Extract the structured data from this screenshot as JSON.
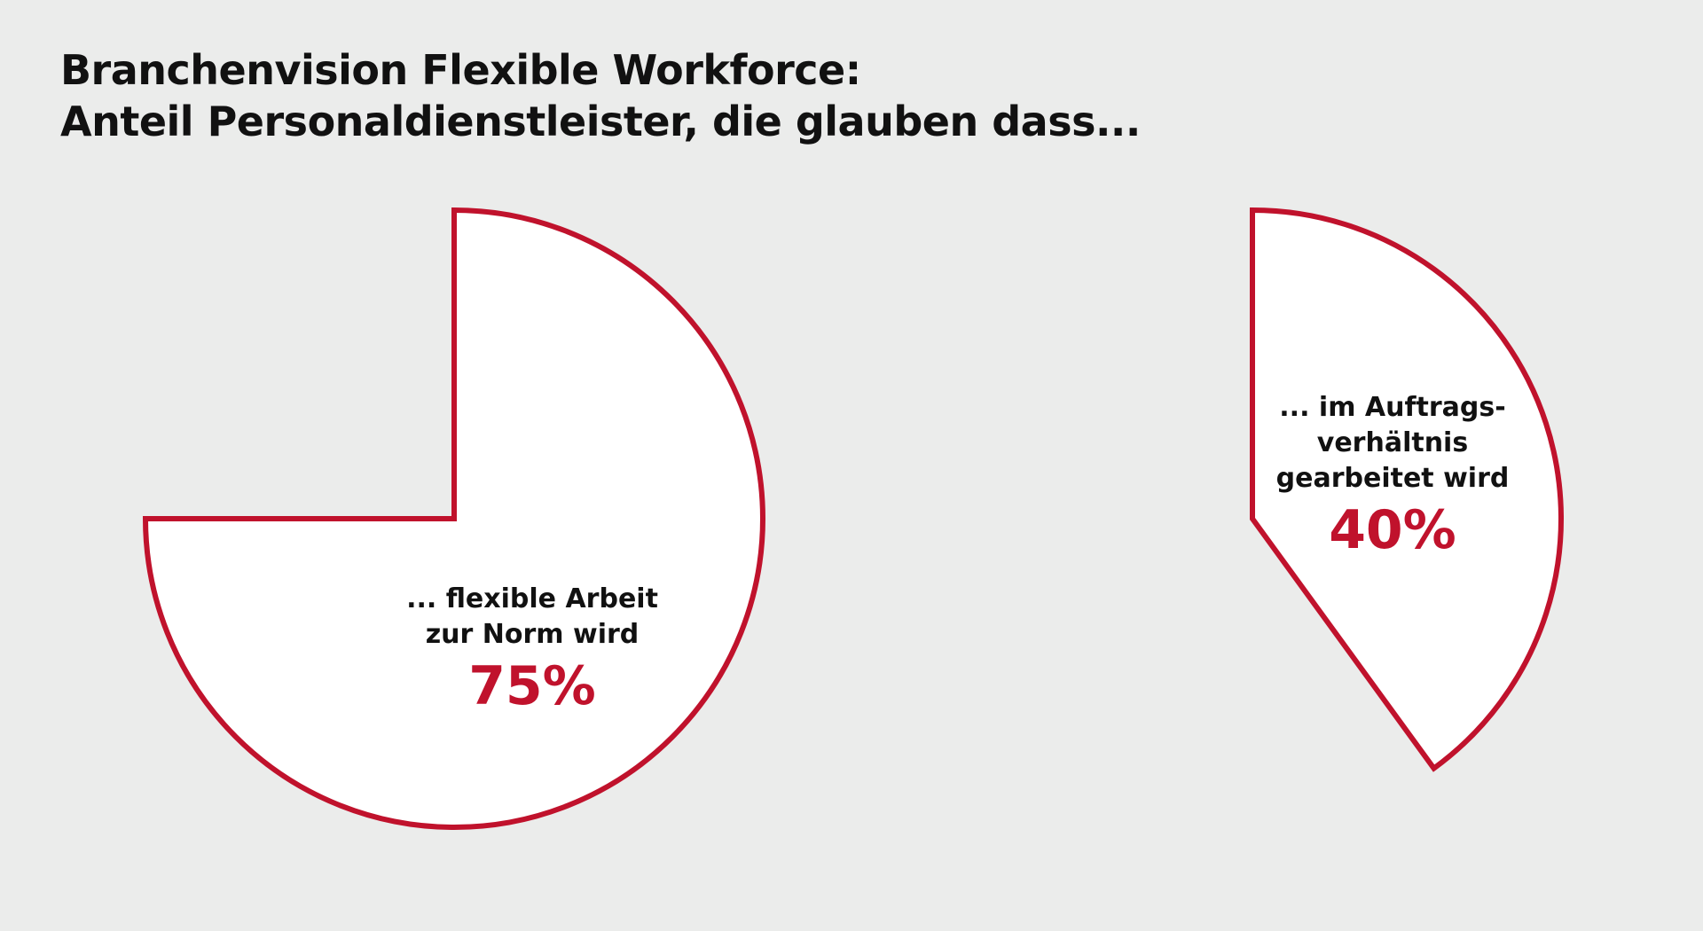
{
  "title": {
    "line1": "Branchenvision Flexible Workforce:",
    "line2": "Anteil Personaldienstleister, die glauben dass..."
  },
  "colors": {
    "accent": "#c0122c",
    "fill": "#ffffff",
    "background": "#ebeceb"
  },
  "chart_data": [
    {
      "type": "pie",
      "labels": [
        "... flexible Arbeit zur Norm wird"
      ],
      "values": [
        75
      ],
      "label_lines": [
        "... flexible Arbeit",
        "zur Norm wird"
      ],
      "value_text": "75%"
    },
    {
      "type": "pie",
      "labels": [
        "... im Auftragsverhältnis gearbeitet wird"
      ],
      "values": [
        40
      ],
      "label_lines": [
        "... im Auftrags-",
        "verhältnis",
        "gearbeitet wird"
      ],
      "value_text": "40%"
    }
  ]
}
